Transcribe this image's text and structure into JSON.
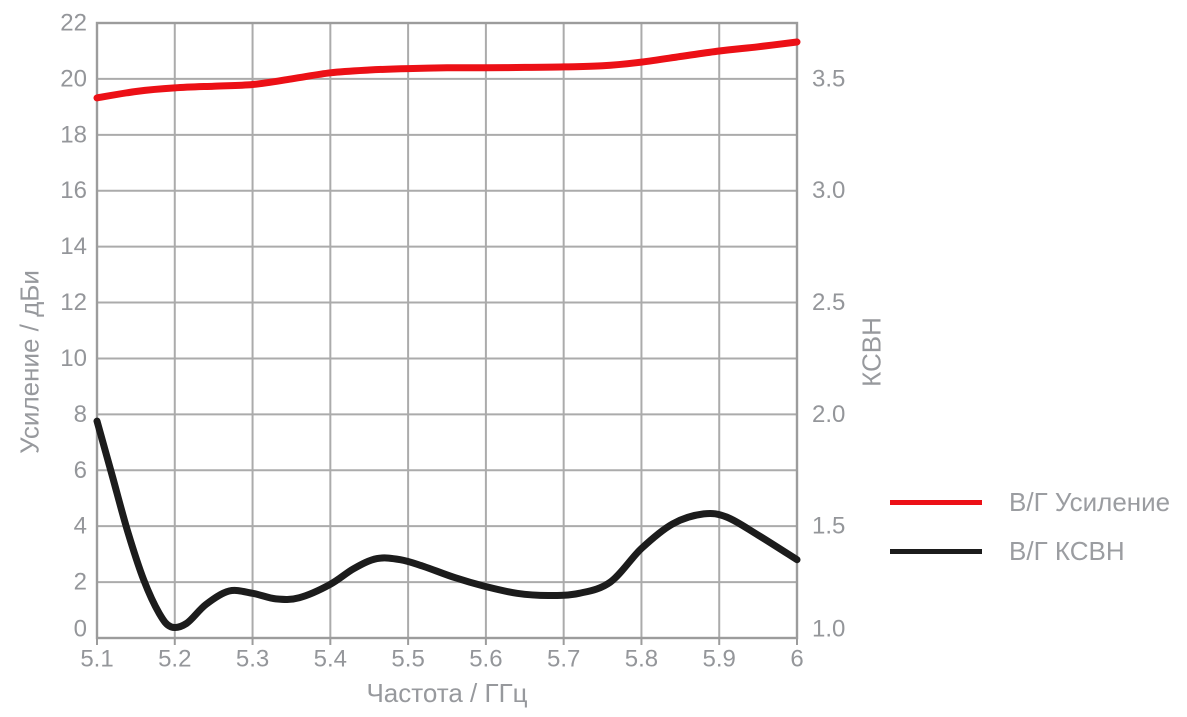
{
  "chart_data": {
    "type": "line",
    "title": "",
    "xlabel": "Частота / ГГц",
    "ylabel_left": "Усиление / дБи",
    "ylabel_right": "КСВН",
    "grid": true,
    "legend_position": "right-outside",
    "x_range": [
      5.1,
      6.0
    ],
    "x_ticks": [
      {
        "v": 5.1,
        "label": "5.1"
      },
      {
        "v": 5.2,
        "label": "5.2"
      },
      {
        "v": 5.3,
        "label": "5.3"
      },
      {
        "v": 5.4,
        "label": "5.4"
      },
      {
        "v": 5.5,
        "label": "5.5"
      },
      {
        "v": 5.6,
        "label": "5.6"
      },
      {
        "v": 5.7,
        "label": "5.7"
      },
      {
        "v": 5.8,
        "label": "5.8"
      },
      {
        "v": 5.9,
        "label": "5.9"
      },
      {
        "v": 6.0,
        "label": "6"
      }
    ],
    "left_axis": {
      "min": 0,
      "max": 22,
      "ticks": [
        {
          "v": 0,
          "label": "0"
        },
        {
          "v": 2,
          "label": "2"
        },
        {
          "v": 4,
          "label": "4"
        },
        {
          "v": 6,
          "label": "6"
        },
        {
          "v": 8,
          "label": "8"
        },
        {
          "v": 10,
          "label": "10"
        },
        {
          "v": 12,
          "label": "12"
        },
        {
          "v": 14,
          "label": "14"
        },
        {
          "v": 16,
          "label": "16"
        },
        {
          "v": 18,
          "label": "18"
        },
        {
          "v": 20,
          "label": "20"
        },
        {
          "v": 22,
          "label": "22"
        }
      ]
    },
    "right_axis": {
      "min": 1.0,
      "max": 3.75,
      "ticks": [
        {
          "v": 1.0,
          "label": "1.0"
        },
        {
          "v": 1.5,
          "label": "1.5"
        },
        {
          "v": 2.0,
          "label": "2.0"
        },
        {
          "v": 2.5,
          "label": "2.5"
        },
        {
          "v": 3.0,
          "label": "3.0"
        },
        {
          "v": 3.5,
          "label": "3.5"
        }
      ]
    },
    "series": [
      {
        "name": "В/Г Усиление",
        "axis": "left",
        "color": "#ec1016",
        "width": 7,
        "points": [
          [
            5.1,
            19.32
          ],
          [
            5.15,
            19.55
          ],
          [
            5.2,
            19.68
          ],
          [
            5.25,
            19.74
          ],
          [
            5.3,
            19.8
          ],
          [
            5.35,
            20.0
          ],
          [
            5.4,
            20.22
          ],
          [
            5.45,
            20.32
          ],
          [
            5.5,
            20.37
          ],
          [
            5.55,
            20.4
          ],
          [
            5.6,
            20.4
          ],
          [
            5.65,
            20.41
          ],
          [
            5.7,
            20.43
          ],
          [
            5.75,
            20.47
          ],
          [
            5.8,
            20.6
          ],
          [
            5.85,
            20.8
          ],
          [
            5.9,
            21.0
          ],
          [
            5.95,
            21.15
          ],
          [
            6.0,
            21.32
          ]
        ]
      },
      {
        "name": "В/Г КСВН",
        "axis": "right",
        "color": "#1c1c1c",
        "width": 7,
        "points": [
          [
            5.1,
            1.97
          ],
          [
            5.12,
            1.72
          ],
          [
            5.14,
            1.47
          ],
          [
            5.16,
            1.26
          ],
          [
            5.18,
            1.11
          ],
          [
            5.195,
            1.05
          ],
          [
            5.215,
            1.065
          ],
          [
            5.24,
            1.15
          ],
          [
            5.27,
            1.21
          ],
          [
            5.3,
            1.2
          ],
          [
            5.33,
            1.175
          ],
          [
            5.36,
            1.18
          ],
          [
            5.4,
            1.24
          ],
          [
            5.43,
            1.31
          ],
          [
            5.46,
            1.355
          ],
          [
            5.49,
            1.35
          ],
          [
            5.52,
            1.32
          ],
          [
            5.56,
            1.27
          ],
          [
            5.6,
            1.23
          ],
          [
            5.64,
            1.2
          ],
          [
            5.68,
            1.19
          ],
          [
            5.72,
            1.2
          ],
          [
            5.76,
            1.25
          ],
          [
            5.8,
            1.4
          ],
          [
            5.84,
            1.51
          ],
          [
            5.88,
            1.555
          ],
          [
            5.91,
            1.54
          ],
          [
            5.95,
            1.46
          ],
          [
            6.0,
            1.35
          ]
        ]
      }
    ]
  },
  "legend": {
    "items": [
      {
        "label": "В/Г Усиление",
        "color": "#ec1016"
      },
      {
        "label": "В/Г КСВН",
        "color": "#1c1c1c"
      }
    ]
  },
  "colors": {
    "background": "#ffffff",
    "grid": "#ababab",
    "border": "#9c9c9c",
    "tick_text": "#94969a",
    "title_text": "#97999d",
    "legend_text": "#9b9da1"
  }
}
